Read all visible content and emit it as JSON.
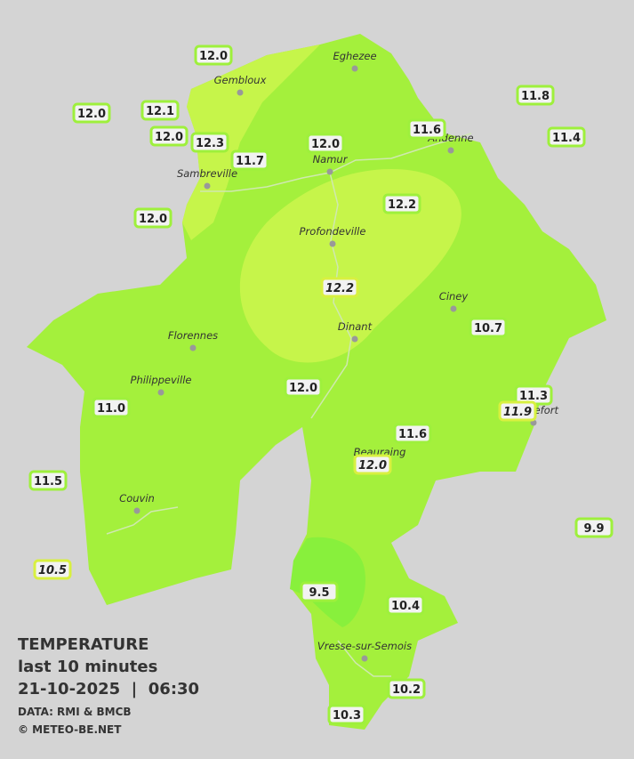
{
  "stations": [
    {
      "label": "12.0"
    },
    {
      "label": "12.1"
    },
    {
      "label": "12.0"
    },
    {
      "label": "12.0"
    },
    {
      "label": "12.3"
    },
    {
      "label": "11.7"
    },
    {
      "label": "12.0"
    },
    {
      "label": "11.6"
    },
    {
      "label": "11.8"
    },
    {
      "label": "11.4"
    },
    {
      "label": "12.2"
    },
    {
      "label": "12.0"
    },
    {
      "label": "12.2",
      "italic": true
    },
    {
      "label": "10.7"
    },
    {
      "label": "12.0"
    },
    {
      "label": "11.3"
    },
    {
      "label": "11.9",
      "italic": true
    },
    {
      "label": "11.0"
    },
    {
      "label": "11.6"
    },
    {
      "label": "12.0",
      "italic": true
    },
    {
      "label": "11.5"
    },
    {
      "label": "9.9"
    },
    {
      "label": "10.5",
      "italic": true
    },
    {
      "label": "9.5"
    },
    {
      "label": "10.4"
    },
    {
      "label": "10.2"
    },
    {
      "label": "10.3"
    }
  ],
  "towns": [
    "Eghezee",
    "Gembloux",
    "Andenne",
    "Namur",
    "Sambreville",
    "Profondeville",
    "Ciney",
    "Dinant",
    "Florennes",
    "Philippeville",
    "Rochefort",
    "Beauraing",
    "Couvin",
    "Vresse-sur-Semois"
  ],
  "legend": {
    "title": "TEMPERATURE",
    "subtitle": "last 10 minutes",
    "datetime": "21-10-2025  |  06:30",
    "source": "DATA: RMI & BMCB",
    "credit": "© METEO-BE.NET"
  }
}
